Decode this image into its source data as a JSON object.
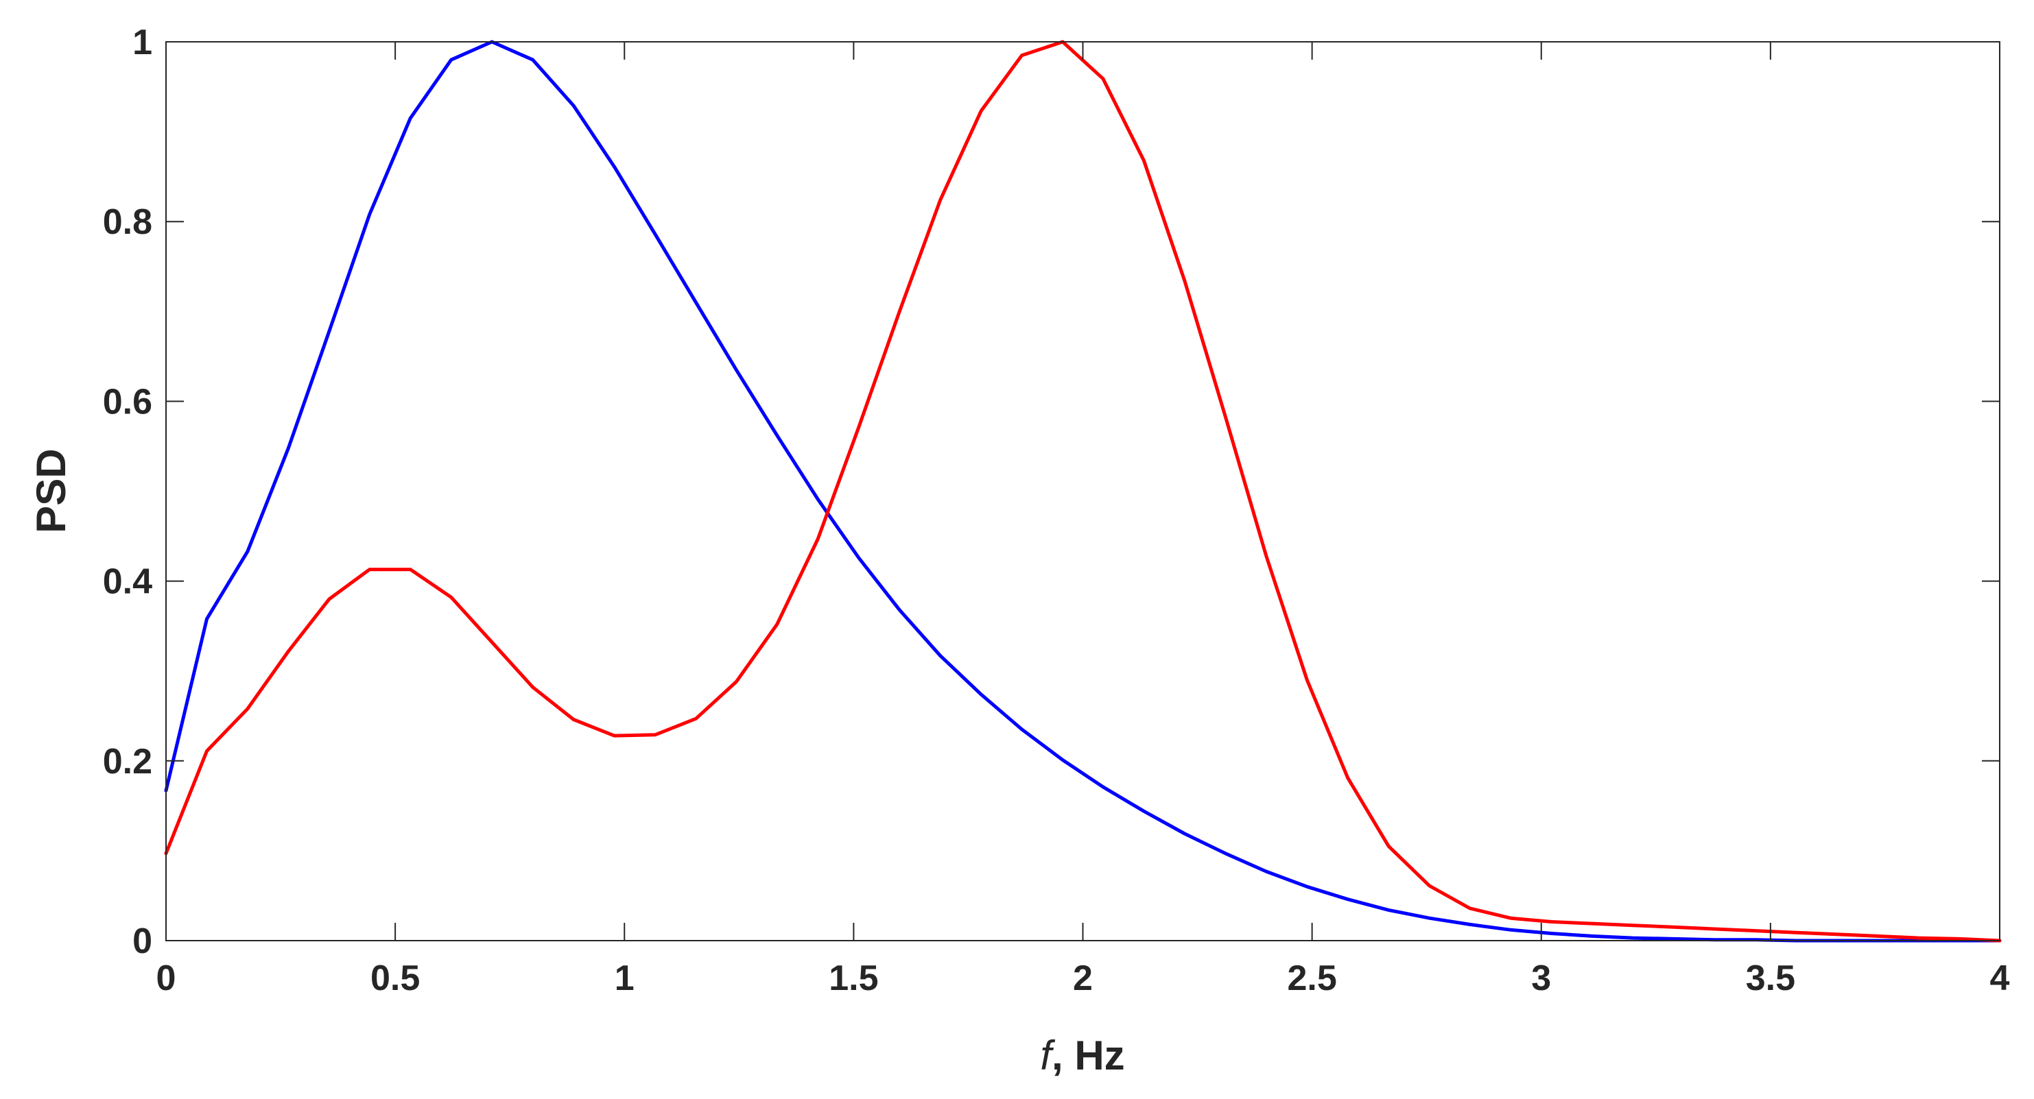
{
  "chart_data": {
    "type": "line",
    "xlabel_prefix": "f",
    "xlabel_suffix": ", Hz",
    "ylabel": "PSD",
    "xlim": [
      0,
      4
    ],
    "ylim": [
      0,
      1
    ],
    "xticks": [
      "0",
      "0.5",
      "1",
      "1.5",
      "2",
      "2.5",
      "3",
      "3.5",
      "4"
    ],
    "yticks": [
      "0",
      "0.2",
      "0.4",
      "0.6",
      "0.8",
      "1"
    ],
    "grid": false,
    "box": true,
    "series": [
      {
        "color": "#0000ff",
        "x": [
          0,
          0.089,
          0.178,
          0.267,
          0.356,
          0.444,
          0.533,
          0.622,
          0.711,
          0.8,
          0.889,
          0.978,
          1.067,
          1.156,
          1.244,
          1.333,
          1.422,
          1.511,
          1.6,
          1.689,
          1.778,
          1.867,
          1.956,
          2.044,
          2.133,
          2.222,
          2.311,
          2.4,
          2.489,
          2.578,
          2.667,
          2.756,
          2.844,
          2.933,
          3.022,
          3.111,
          3.2,
          3.289,
          3.378,
          3.467,
          3.556,
          3.644,
          3.733,
          3.822,
          3.911,
          4.0
        ],
        "y": [
          0.167,
          0.358,
          0.433,
          0.548,
          0.678,
          0.808,
          0.915,
          0.98,
          1.0,
          0.98,
          0.929,
          0.861,
          0.786,
          0.71,
          0.635,
          0.562,
          0.491,
          0.426,
          0.368,
          0.317,
          0.274,
          0.235,
          0.201,
          0.171,
          0.144,
          0.119,
          0.097,
          0.077,
          0.06,
          0.046,
          0.034,
          0.025,
          0.018,
          0.012,
          0.008,
          0.005,
          0.003,
          0.002,
          0.001,
          0.001,
          0.0,
          0.0,
          0.0,
          0.0,
          0.0,
          0.0
        ]
      },
      {
        "color": "#ff0000",
        "x": [
          0,
          0.089,
          0.178,
          0.267,
          0.356,
          0.444,
          0.533,
          0.622,
          0.711,
          0.8,
          0.889,
          0.978,
          1.067,
          1.156,
          1.244,
          1.333,
          1.422,
          1.511,
          1.6,
          1.689,
          1.778,
          1.867,
          1.956,
          2.044,
          2.133,
          2.222,
          2.311,
          2.4,
          2.489,
          2.578,
          2.667,
          2.756,
          2.844,
          2.933,
          3.022,
          3.111,
          3.2,
          3.289,
          3.378,
          3.467,
          3.556,
          3.644,
          3.733,
          3.822,
          3.911,
          4.0
        ],
        "y": [
          0.097,
          0.211,
          0.258,
          0.322,
          0.38,
          0.413,
          0.413,
          0.382,
          0.332,
          0.282,
          0.246,
          0.228,
          0.229,
          0.247,
          0.288,
          0.352,
          0.447,
          0.571,
          0.7,
          0.824,
          0.923,
          0.985,
          1.0,
          0.959,
          0.868,
          0.734,
          0.583,
          0.428,
          0.29,
          0.181,
          0.105,
          0.061,
          0.036,
          0.025,
          0.021,
          0.019,
          0.017,
          0.015,
          0.013,
          0.011,
          0.009,
          0.007,
          0.005,
          0.003,
          0.002,
          0.0
        ]
      }
    ]
  }
}
